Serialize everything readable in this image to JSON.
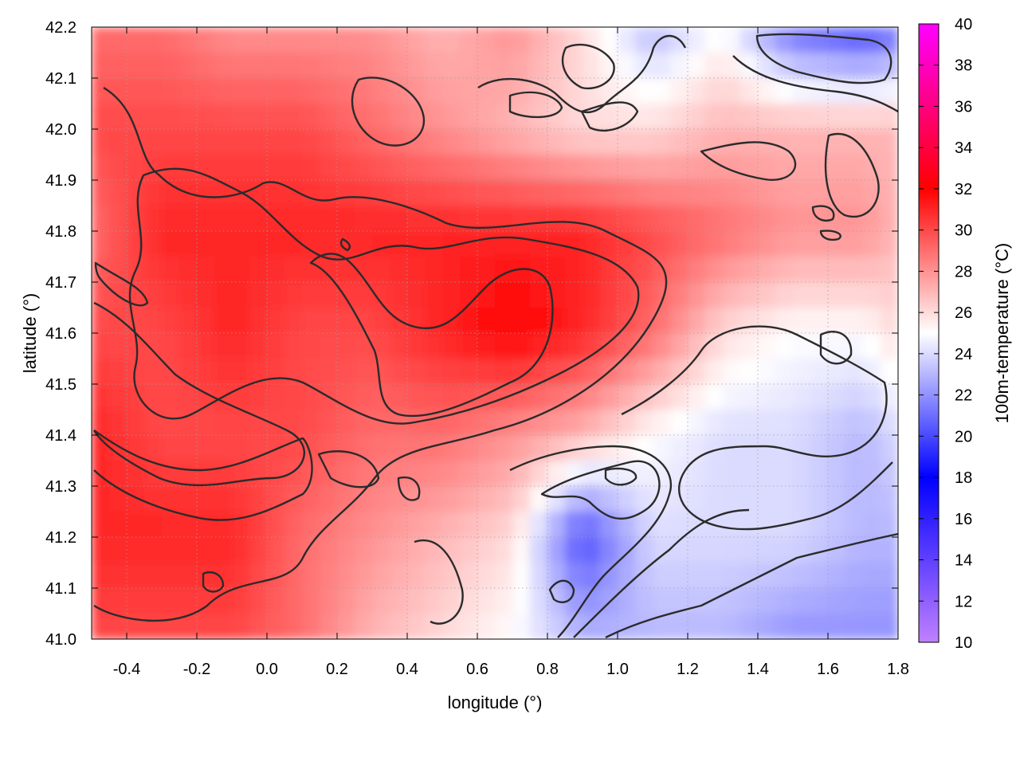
{
  "chart_data": {
    "type": "heatmap",
    "title": "",
    "xlabel": "longitude (°)",
    "ylabel": "latitude (°)",
    "colorbar_label": "100m-temperature (°C)",
    "xlim": [
      -0.5,
      1.8
    ],
    "ylim": [
      41.0,
      42.2
    ],
    "clim": [
      10,
      40
    ],
    "x_ticks": [
      "-0.4",
      "-0.2",
      "0.0",
      "0.2",
      "0.4",
      "0.6",
      "0.8",
      "1.0",
      "1.2",
      "1.4",
      "1.6",
      "1.8"
    ],
    "y_ticks": [
      "41.0",
      "41.1",
      "41.2",
      "41.3",
      "41.4",
      "41.5",
      "41.6",
      "41.7",
      "41.8",
      "41.9",
      "42.0",
      "42.1",
      "42.2"
    ],
    "colorbar_ticks": [
      "10",
      "12",
      "14",
      "16",
      "18",
      "20",
      "22",
      "24",
      "26",
      "28",
      "30",
      "32",
      "34",
      "36",
      "38",
      "40"
    ],
    "grid": true,
    "colormap": [
      {
        "value": 10,
        "color": "#c080ff"
      },
      {
        "value": 18,
        "color": "#0000ff"
      },
      {
        "value": 25,
        "color": "#ffffff"
      },
      {
        "value": 32,
        "color": "#ff0000"
      },
      {
        "value": 40,
        "color": "#ff00ff"
      }
    ],
    "temperature_field": {
      "lon": [
        -0.5,
        -0.3,
        -0.1,
        0.1,
        0.3,
        0.5,
        0.7,
        0.9,
        1.1,
        1.3,
        1.5,
        1.7,
        1.8
      ],
      "lat": [
        42.2,
        42.0,
        41.8,
        41.6,
        41.4,
        41.2,
        41.0
      ],
      "values": [
        [
          29,
          29,
          28,
          28,
          28,
          27,
          28,
          26,
          23,
          25,
          21,
          20,
          21
        ],
        [
          30,
          30,
          30,
          30,
          29,
          28,
          27,
          26,
          26,
          27,
          27,
          27,
          27
        ],
        [
          29,
          31,
          31,
          31,
          31,
          31,
          31,
          31,
          30,
          29,
          28,
          28,
          27
        ],
        [
          30,
          30,
          31,
          30,
          30,
          31,
          32,
          31,
          29,
          26,
          25,
          25,
          26
        ],
        [
          31,
          30,
          30,
          30,
          29,
          29,
          28,
          27,
          25,
          24,
          24,
          23,
          24
        ],
        [
          31,
          31,
          31,
          29,
          28,
          27,
          26,
          20,
          24,
          24,
          24,
          23,
          23
        ],
        [
          30,
          30,
          30,
          29,
          27,
          26,
          25,
          23,
          23,
          23,
          22,
          22,
          22
        ]
      ]
    }
  }
}
